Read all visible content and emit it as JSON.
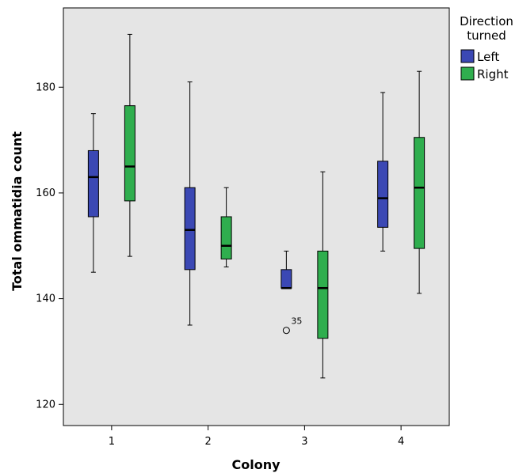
{
  "chart_data": {
    "type": "boxplot",
    "xlabel": "Colony",
    "ylabel": "Total ommatidia count",
    "categories": [
      "1",
      "2",
      "3",
      "4"
    ],
    "ylim": [
      116,
      195
    ],
    "yticks": [
      120,
      140,
      160,
      180
    ],
    "grid": false,
    "legend": {
      "title_lines": [
        "Direction",
        "turned"
      ],
      "placement": "right"
    },
    "series": [
      {
        "name": "Left",
        "color": "#3b48b4",
        "boxes": [
          {
            "category": "1",
            "min": 145,
            "q1": 155.5,
            "median": 163,
            "q3": 168,
            "max": 175
          },
          {
            "category": "2",
            "min": 135,
            "q1": 145.5,
            "median": 153,
            "q3": 161,
            "max": 181
          },
          {
            "category": "3",
            "min": 142,
            "q1": 142,
            "median": 142,
            "q3": 145.5,
            "max": 149,
            "outliers": [
              {
                "value": 134,
                "label": "35"
              }
            ]
          },
          {
            "category": "4",
            "min": 149,
            "q1": 153.5,
            "median": 159,
            "q3": 166,
            "max": 179
          }
        ]
      },
      {
        "name": "Right",
        "color": "#2fae4e",
        "boxes": [
          {
            "category": "1",
            "min": 148,
            "q1": 158.5,
            "median": 165,
            "q3": 176.5,
            "max": 190
          },
          {
            "category": "2",
            "min": 146,
            "q1": 147.5,
            "median": 150,
            "q3": 155.5,
            "max": 161
          },
          {
            "category": "3",
            "min": 125,
            "q1": 132.5,
            "median": 142,
            "q3": 149,
            "max": 164
          },
          {
            "category": "4",
            "min": 141,
            "q1": 149.5,
            "median": 161,
            "q3": 170.5,
            "max": 183
          }
        ]
      }
    ]
  },
  "colors": {
    "plot_background": "#e5e5e5",
    "axis": "#000000"
  }
}
